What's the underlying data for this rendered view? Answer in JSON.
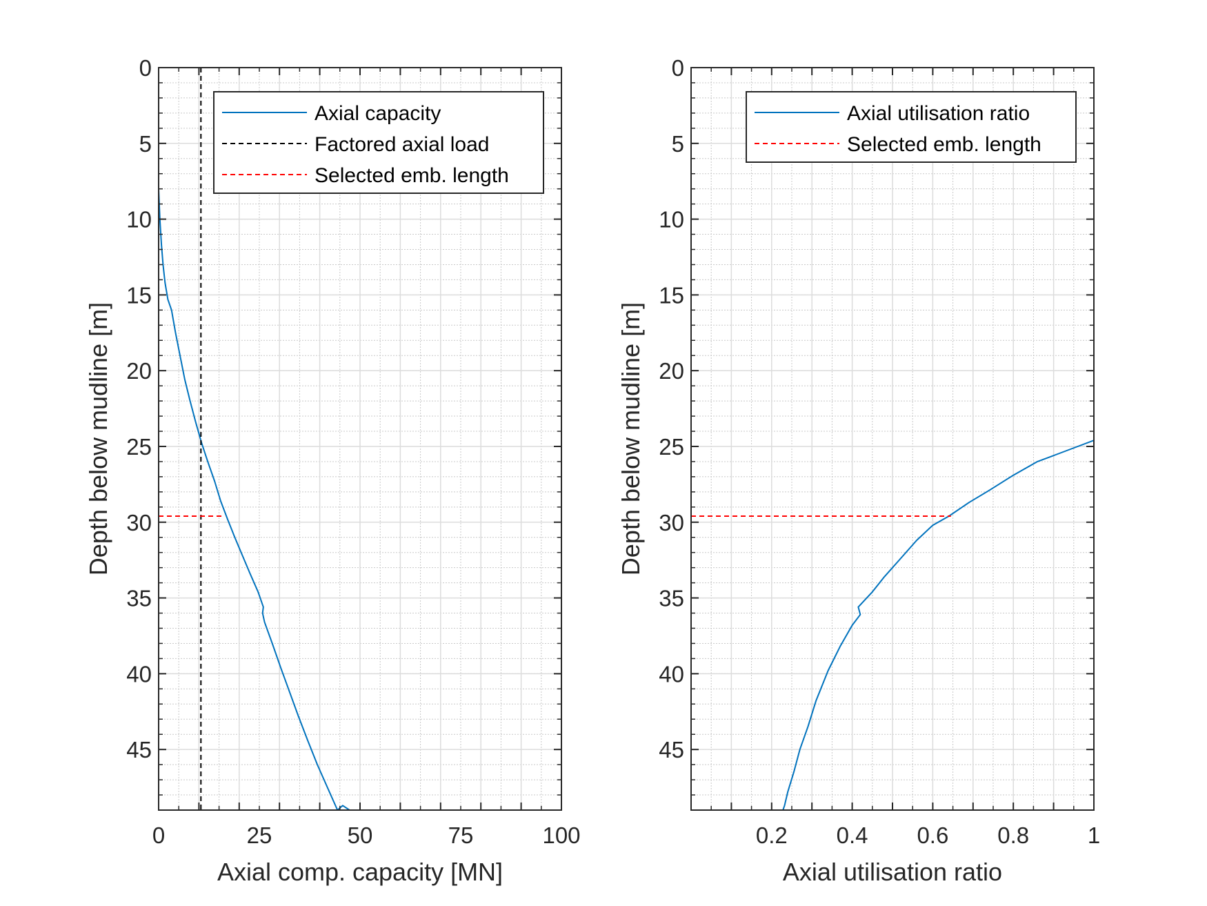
{
  "colors": {
    "capacity_line": "#0072BD",
    "factored_load_line": "#000000",
    "selected_length_line": "#FF0000",
    "axes": "#262626",
    "grid_major": "#DCDCDC",
    "grid_minor": "#C8C8C8",
    "background": "#FFFFFF"
  },
  "chart_data": [
    {
      "type": "line",
      "xlabel": "Axial comp. capacity [MN]",
      "ylabel": "Depth below mudline [m]",
      "xlim": [
        0,
        100
      ],
      "ylim": [
        0,
        49
      ],
      "y_reversed": true,
      "grid": "major and minor",
      "x_ticks": [
        0,
        25,
        50,
        75,
        100
      ],
      "x_tick_labels": [
        "0",
        "25",
        "50",
        "75",
        "100"
      ],
      "y_ticks": [
        0,
        5,
        10,
        15,
        20,
        25,
        30,
        35,
        40,
        45
      ],
      "y_tick_labels": [
        "0",
        "5",
        "10",
        "15",
        "20",
        "25",
        "30",
        "35",
        "40",
        "45"
      ],
      "legend_position": "top-right",
      "series": [
        {
          "name": "Axial capacity",
          "style": "solid",
          "color": "#0072BD",
          "x": [
            0,
            0.3,
            0.7,
            1.1,
            1.6,
            2.3,
            3.2,
            4.2,
            5.3,
            6.5,
            7.8,
            9.2,
            10.7,
            12.2,
            13.9,
            15.4,
            17.1,
            18.9,
            20.8,
            22.7,
            24.7,
            26.0,
            25.8,
            26.3,
            28.2,
            30.3,
            32.5,
            34.7,
            37.0,
            39.4,
            41.9,
            44.4,
            45.7,
            47.4
          ],
          "y": [
            8,
            10,
            11.7,
            13,
            14.2,
            15.3,
            16,
            17.5,
            19,
            20.6,
            22,
            23.4,
            24.8,
            26,
            27.3,
            28.6,
            29.8,
            31,
            32.2,
            33.4,
            34.6,
            35.6,
            36.0,
            36.6,
            38,
            39.6,
            41.2,
            42.8,
            44.4,
            46,
            47.5,
            49.0,
            48.7,
            49
          ]
        },
        {
          "name": "Factored axial load",
          "style": "dashed",
          "color": "#000000",
          "x": [
            10.5,
            10.5
          ],
          "y": [
            0,
            49
          ]
        },
        {
          "name": "Selected emb. length",
          "style": "dashed",
          "color": "#FF0000",
          "x": [
            0,
            15.8
          ],
          "y": [
            29.6,
            29.6
          ]
        }
      ]
    },
    {
      "type": "line",
      "xlabel": "Axial utilisation ratio",
      "ylabel": "Depth below mudline [m]",
      "xlim": [
        0,
        1
      ],
      "ylim": [
        0,
        49
      ],
      "y_reversed": true,
      "grid": "major and minor",
      "x_ticks": [
        0.2,
        0.4,
        0.6,
        0.8,
        1
      ],
      "x_tick_labels": [
        "0.2",
        "0.4",
        "0.6",
        "0.8",
        "1"
      ],
      "y_ticks": [
        0,
        5,
        10,
        15,
        20,
        25,
        30,
        35,
        40,
        45
      ],
      "y_tick_labels": [
        "0",
        "5",
        "10",
        "15",
        "20",
        "25",
        "30",
        "35",
        "40",
        "45"
      ],
      "legend_position": "top-right",
      "series": [
        {
          "name": "Axial utilisation ratio",
          "style": "solid",
          "color": "#0072BD",
          "x": [
            1.0,
            0.96,
            0.91,
            0.86,
            0.8,
            0.74,
            0.69,
            0.64,
            0.6,
            0.56,
            0.52,
            0.48,
            0.45,
            0.415,
            0.42,
            0.4,
            0.37,
            0.34,
            0.31,
            0.29,
            0.27,
            0.255,
            0.24,
            0.232,
            0.228
          ],
          "y": [
            24.6,
            25.0,
            25.5,
            26.0,
            26.9,
            27.9,
            28.7,
            29.6,
            30.2,
            31.2,
            32.4,
            33.6,
            34.6,
            35.6,
            36.1,
            36.8,
            38.2,
            39.8,
            41.8,
            43.5,
            45.0,
            46.5,
            47.8,
            48.7,
            49
          ]
        },
        {
          "name": "Selected emb. length",
          "style": "dashed",
          "color": "#FF0000",
          "x": [
            0,
            0.645
          ],
          "y": [
            29.6,
            29.6
          ]
        }
      ]
    }
  ]
}
